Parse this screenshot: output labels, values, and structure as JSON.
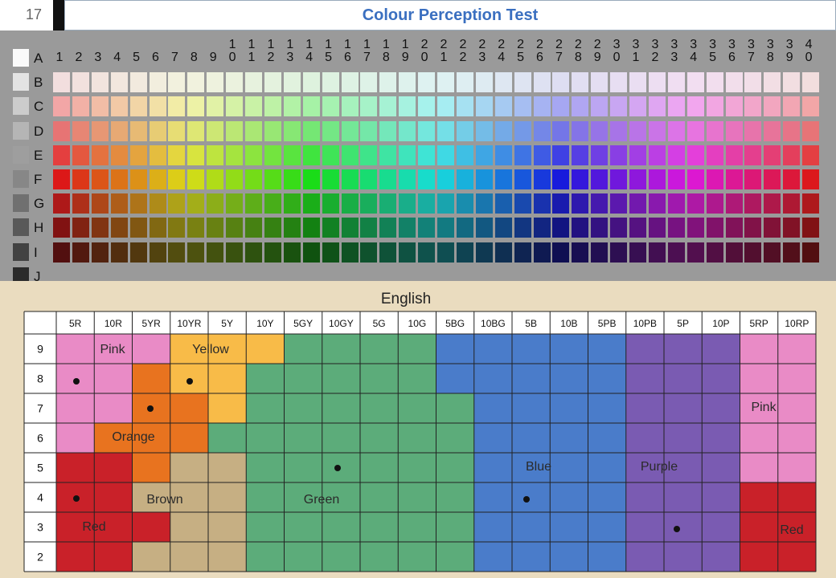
{
  "slide_number": "17",
  "title": "Colour Perception Test",
  "swatch_grid": {
    "row_labels": [
      "A",
      "B",
      "C",
      "D",
      "E",
      "F",
      "G",
      "H",
      "I",
      "J"
    ],
    "column_labels": [
      "1",
      "2",
      "3",
      "4",
      "5",
      "6",
      "7",
      "8",
      "9",
      "10",
      "11",
      "12",
      "13",
      "14",
      "15",
      "16",
      "17",
      "18",
      "19",
      "20",
      "21",
      "22",
      "23",
      "24",
      "25",
      "26",
      "27",
      "28",
      "29",
      "30",
      "31",
      "32",
      "33",
      "34",
      "35",
      "36",
      "37",
      "38",
      "39",
      "40"
    ]
  },
  "naming_chart": {
    "title": "English",
    "columns": [
      "5R",
      "10R",
      "5YR",
      "10YR",
      "5Y",
      "10Y",
      "5GY",
      "10GY",
      "5G",
      "10G",
      "5BG",
      "10BG",
      "5B",
      "10B",
      "5PB",
      "10PB",
      "5P",
      "10P",
      "5RP",
      "10RP"
    ],
    "rows": [
      "9",
      "8",
      "7",
      "6",
      "5",
      "4",
      "3",
      "2"
    ],
    "regions": [
      "Pink",
      "Yellow",
      "Orange",
      "Brown",
      "Green",
      "Blue",
      "Purple",
      "Pink",
      "Red",
      "Red"
    ]
  }
}
